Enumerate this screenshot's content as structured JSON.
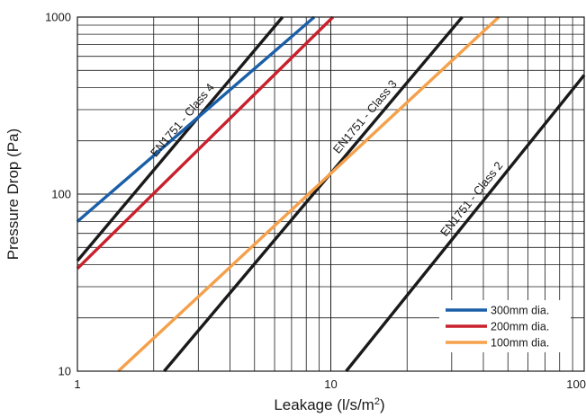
{
  "chart_data": {
    "type": "line",
    "xlabel": "Leakage (l/s/m",
    "xlabel_sup": "2",
    "xlabel_end": ")",
    "ylabel": "Pressure Drop (Pa)",
    "x_scale": "log",
    "y_scale": "log",
    "xlim": [
      1,
      100
    ],
    "ylim": [
      10,
      1000
    ],
    "x_ticks": [
      {
        "value": 1,
        "label": "1"
      },
      {
        "value": 10,
        "label": "10"
      },
      {
        "value": 100,
        "label": "100"
      }
    ],
    "y_ticks": [
      {
        "value": 10,
        "label": "10"
      },
      {
        "value": 100,
        "label": "100"
      },
      {
        "value": 1000,
        "label": "1000"
      }
    ],
    "grid": true,
    "legend": {
      "position": "bottom-right"
    },
    "series": [
      {
        "name": "300mm dia.",
        "color": "#1a5fa8",
        "points": [
          [
            1,
            70
          ],
          [
            8.6,
            1000
          ]
        ]
      },
      {
        "name": "200mm dia.",
        "color": "#c8202c",
        "points": [
          [
            1,
            38
          ],
          [
            10.2,
            1000
          ]
        ]
      },
      {
        "name": "100mm dia.",
        "color": "#f5a04a",
        "points": [
          [
            1.45,
            10
          ],
          [
            46,
            1000
          ]
        ]
      },
      {
        "label": "EN1751 - Class 4",
        "color": "#1a1a1a",
        "points": [
          [
            1,
            42
          ],
          [
            6.45,
            1000
          ]
        ]
      },
      {
        "label": "EN1751 - Class 3",
        "color": "#1a1a1a",
        "points": [
          [
            2.2,
            10
          ],
          [
            33,
            1000
          ]
        ]
      },
      {
        "label": "EN1751 - Class 2",
        "color": "#1a1a1a",
        "points": [
          [
            11.5,
            10
          ],
          [
            100,
            470
          ]
        ]
      }
    ],
    "annotations": [
      {
        "text": "EN1751 - Class 4"
      },
      {
        "text": "EN1751 - Class 3"
      },
      {
        "text": "EN1751 - Class 2"
      }
    ]
  }
}
